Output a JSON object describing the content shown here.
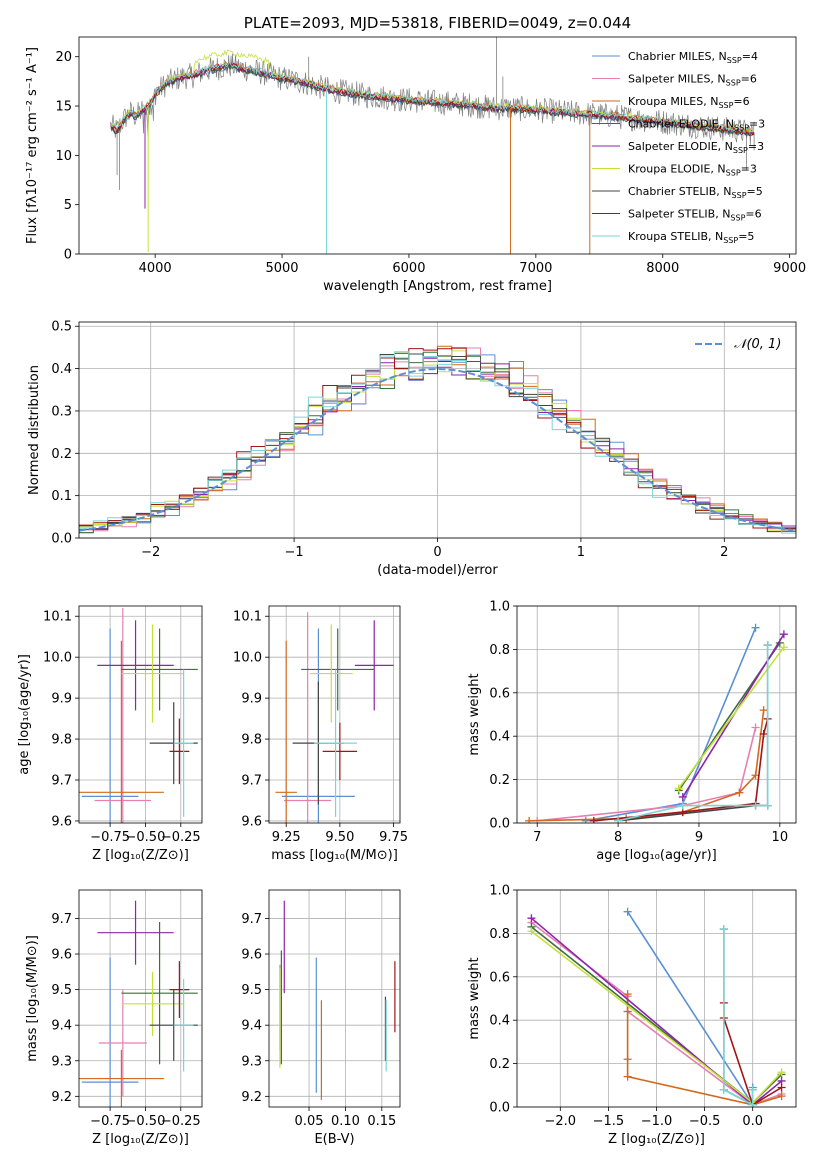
{
  "colors": {
    "chabrier_miles": "#5b8fd6",
    "salpeter_miles": "#e87fb0",
    "kroupa_miles": "#d2691e",
    "chabrier_elodie": "#3d6e3d",
    "salpeter_elodie": "#8e24aa",
    "kroupa_elodie": "#c6e03a",
    "chabrier_stelib": "#444444",
    "salpeter_stelib": "#a11515",
    "kroupa_stelib": "#7ad6d6",
    "noise": "#808080",
    "gauss": "#5b8fd6"
  },
  "chart_data": [
    {
      "id": "spectrum",
      "type": "line",
      "title": "PLATE=2093, MJD=53818, FIBERID=0049, z=0.044",
      "xlabel": "wavelength [Angstrom, rest frame]",
      "ylabel": "Flux [fλ10⁻¹⁷ erg cm⁻² s⁻¹ A⁻¹]",
      "xlim": [
        3400,
        9050
      ],
      "ylim": [
        0,
        22
      ],
      "xticks": [
        4000,
        5000,
        6000,
        7000,
        8000,
        9000
      ],
      "yticks": [
        0,
        5,
        10,
        15,
        20
      ],
      "legend_position": "top-right",
      "legend": [
        {
          "label": "Chabrier MILES, N",
          "sub": "SSP",
          "tail": "=4",
          "color_key": "chabrier_miles"
        },
        {
          "label": "Salpeter MILES, N",
          "sub": "SSP",
          "tail": "=6",
          "color_key": "salpeter_miles"
        },
        {
          "label": "Kroupa MILES, N",
          "sub": "SSP",
          "tail": "=6",
          "color_key": "kroupa_miles"
        },
        {
          "label": "Chabrier ELODIE, N",
          "sub": "SSP",
          "tail": "=3",
          "color_key": "chabrier_elodie"
        },
        {
          "label": "Salpeter ELODIE, N",
          "sub": "SSP",
          "tail": "=3",
          "color_key": "salpeter_elodie"
        },
        {
          "label": "Kroupa ELODIE, N",
          "sub": "SSP",
          "tail": "=3",
          "color_key": "kroupa_elodie"
        },
        {
          "label": "Chabrier STELIB, N",
          "sub": "SSP",
          "tail": "=5",
          "color_key": "chabrier_stelib"
        },
        {
          "label": "Salpeter STELIB, N",
          "sub": "SSP",
          "tail": "=6",
          "color_key": "salpeter_stelib"
        },
        {
          "label": "Kroupa STELIB, N",
          "sub": "SSP",
          "tail": "=5",
          "color_key": "kroupa_stelib"
        }
      ],
      "continuum": [
        [
          3650,
          13.0
        ],
        [
          3700,
          12.5
        ],
        [
          3750,
          13.6
        ],
        [
          3800,
          14.3
        ],
        [
          3850,
          14.0
        ],
        [
          3900,
          14.6
        ],
        [
          3950,
          15.0
        ],
        [
          4000,
          16.3
        ],
        [
          4100,
          17.4
        ],
        [
          4200,
          17.9
        ],
        [
          4300,
          18.1
        ],
        [
          4400,
          18.6
        ],
        [
          4500,
          18.9
        ],
        [
          4600,
          19.1
        ],
        [
          4700,
          18.8
        ],
        [
          4800,
          18.5
        ],
        [
          4900,
          18.2
        ],
        [
          5000,
          17.8
        ],
        [
          5100,
          17.6
        ],
        [
          5200,
          17.3
        ],
        [
          5300,
          16.9
        ],
        [
          5400,
          16.6
        ],
        [
          5500,
          16.4
        ],
        [
          5600,
          16.2
        ],
        [
          5700,
          16.0
        ],
        [
          5800,
          15.9
        ],
        [
          5900,
          15.7
        ],
        [
          6000,
          15.6
        ],
        [
          6100,
          15.5
        ],
        [
          6200,
          15.4
        ],
        [
          6300,
          15.3
        ],
        [
          6400,
          15.2
        ],
        [
          6500,
          15.1
        ],
        [
          6600,
          14.9
        ],
        [
          6700,
          14.8
        ],
        [
          6800,
          14.8
        ],
        [
          6900,
          14.7
        ],
        [
          7000,
          14.6
        ],
        [
          7200,
          14.4
        ],
        [
          7400,
          14.2
        ],
        [
          7600,
          14.0
        ],
        [
          7800,
          13.7
        ],
        [
          8000,
          13.4
        ],
        [
          8200,
          13.1
        ],
        [
          8400,
          12.8
        ],
        [
          8600,
          12.5
        ],
        [
          8700,
          12.3
        ]
      ],
      "noise_spikes": [
        [
          6690,
          22.0
        ],
        [
          6740,
          18.0
        ],
        [
          5210,
          20.0
        ],
        [
          8720,
          10.5
        ],
        [
          8660,
          8.5
        ],
        [
          3700,
          8.0
        ],
        [
          3720,
          6.5
        ]
      ],
      "model_drops": [
        {
          "x": 3945,
          "y": 0.2,
          "color_key": "kroupa_elodie"
        },
        {
          "x": 3920,
          "y": 4.6,
          "color_key": "salpeter_elodie"
        },
        {
          "x": 5350,
          "y": 0.0,
          "color_key": "kroupa_stelib"
        },
        {
          "x": 6800,
          "y": 0.0,
          "color_key": "kroupa_miles"
        },
        {
          "x": 7425,
          "y": 0.0,
          "color_key": "kroupa_miles"
        }
      ]
    },
    {
      "id": "residuals",
      "type": "line",
      "xlabel": "(data-model)/error",
      "ylabel": "Normed distribution",
      "xlim": [
        -2.5,
        2.5
      ],
      "ylim": [
        0,
        0.51
      ],
      "xticks": [
        -2,
        -1,
        0,
        1,
        2
      ],
      "yticks": [
        0.0,
        0.1,
        0.2,
        0.3,
        0.4,
        0.5
      ],
      "grid": true,
      "legend_position": "top-right",
      "gauss_label": "𝒩(0, 1)",
      "bin_width": 0.1
    },
    {
      "id": "age_vs_Z",
      "type": "scatter",
      "xlabel": "Z [log₁₀(Z/Z⊙)]",
      "ylabel": "age  [log₁₀(age/yr)]",
      "xlim": [
        -0.97,
        -0.1
      ],
      "ylim": [
        9.595,
        10.125
      ],
      "xticks": [
        -0.75,
        -0.5,
        -0.25
      ],
      "xticklabels": [
        "−0.75",
        "−0.50",
        "−0.25"
      ],
      "yticks": [
        9.6,
        9.7,
        9.8,
        9.9,
        10.0,
        10.1
      ],
      "grid": true,
      "points": [
        {
          "x": -0.75,
          "xerr": 0.2,
          "y": 9.66,
          "yerr": 0.41,
          "color_key": "chabrier_miles"
        },
        {
          "x": -0.66,
          "xerr": 0.2,
          "y": 9.65,
          "yerr": 0.47,
          "color_key": "salpeter_miles"
        },
        {
          "x": -0.67,
          "xerr": 0.3,
          "y": 9.67,
          "yerr": 0.37,
          "color_key": "kroupa_miles"
        },
        {
          "x": -0.4,
          "xerr": 0.27,
          "y": 9.97,
          "yerr": 0.1,
          "color_key": "chabrier_elodie"
        },
        {
          "x": -0.57,
          "xerr": 0.27,
          "y": 9.98,
          "yerr": 0.11,
          "color_key": "salpeter_elodie"
        },
        {
          "x": -0.45,
          "xerr": 0.22,
          "y": 9.96,
          "yerr": 0.12,
          "color_key": "kroupa_elodie"
        },
        {
          "x": -0.3,
          "xerr": 0.17,
          "y": 9.79,
          "yerr": 0.1,
          "color_key": "chabrier_stelib"
        },
        {
          "x": -0.26,
          "xerr": 0.07,
          "y": 9.77,
          "yerr": 0.08,
          "color_key": "salpeter_stelib"
        },
        {
          "x": -0.23,
          "xerr": 0.07,
          "y": 9.79,
          "yerr": 0.18,
          "color_key": "kroupa_stelib"
        }
      ]
    },
    {
      "id": "age_vs_mass",
      "type": "scatter",
      "xlabel": "mass [log₁₀(M/M⊙)]",
      "xlim": [
        9.17,
        9.78
      ],
      "ylim": [
        9.595,
        10.125
      ],
      "xticks": [
        9.25,
        9.5,
        9.75
      ],
      "xticklabels": [
        "9.25",
        "9.50",
        "9.75"
      ],
      "yticks": [
        9.6,
        9.7,
        9.8,
        9.9,
        10.0,
        10.1
      ],
      "grid": true,
      "points": [
        {
          "x": 9.4,
          "xerr": 0.17,
          "y": 9.66,
          "yerr": 0.41,
          "color_key": "chabrier_miles"
        },
        {
          "x": 9.35,
          "xerr": 0.11,
          "y": 9.65,
          "yerr": 0.46,
          "color_key": "salpeter_miles"
        },
        {
          "x": 9.25,
          "xerr": 0.05,
          "y": 9.67,
          "yerr": 0.37,
          "color_key": "kroupa_miles"
        },
        {
          "x": 9.49,
          "xerr": 0.17,
          "y": 9.97,
          "yerr": 0.1,
          "color_key": "chabrier_elodie"
        },
        {
          "x": 9.66,
          "xerr": 0.09,
          "y": 9.98,
          "yerr": 0.11,
          "color_key": "salpeter_elodie"
        },
        {
          "x": 9.46,
          "xerr": 0.1,
          "y": 9.96,
          "yerr": 0.12,
          "color_key": "kroupa_elodie"
        },
        {
          "x": 9.4,
          "xerr": 0.12,
          "y": 9.79,
          "yerr": 0.15,
          "color_key": "chabrier_stelib"
        },
        {
          "x": 9.5,
          "xerr": 0.08,
          "y": 9.77,
          "yerr": 0.07,
          "color_key": "salpeter_stelib"
        },
        {
          "x": 9.48,
          "xerr": 0.1,
          "y": 9.79,
          "yerr": 0.18,
          "color_key": "kroupa_stelib"
        }
      ]
    },
    {
      "id": "mass_weight_vs_age",
      "type": "line",
      "xlabel": "age  [log₁₀(age/yr)]",
      "ylabel": "mass weight",
      "xlim": [
        6.75,
        10.2
      ],
      "ylim": [
        0,
        1
      ],
      "xticks": [
        7,
        8,
        9,
        10
      ],
      "yticks": [
        0.0,
        0.2,
        0.4,
        0.6,
        0.8,
        1.0
      ],
      "grid": true,
      "series": [
        {
          "color_key": "chabrier_miles",
          "x": [
            7.6,
            8.8,
            9.7
          ],
          "y": [
            0.01,
            0.09,
            0.9
          ]
        },
        {
          "color_key": "salpeter_miles",
          "x": [
            7.0,
            8.8,
            9.5,
            9.7
          ],
          "y": [
            0.01,
            0.08,
            0.14,
            0.44
          ]
        },
        {
          "color_key": "kroupa_miles",
          "x": [
            6.9,
            8.1,
            8.8,
            9.5,
            9.7,
            9.8
          ],
          "y": [
            0.01,
            0.02,
            0.05,
            0.14,
            0.22,
            0.52
          ]
        },
        {
          "color_key": "chabrier_elodie",
          "x": [
            8.75,
            10.0
          ],
          "y": [
            0.15,
            0.83
          ]
        },
        {
          "color_key": "salpeter_elodie",
          "x": [
            8.8,
            10.05
          ],
          "y": [
            0.12,
            0.87
          ]
        },
        {
          "color_key": "kroupa_elodie",
          "x": [
            8.75,
            10.05
          ],
          "y": [
            0.16,
            0.81
          ]
        },
        {
          "color_key": "chabrier_stelib",
          "x": [
            8.0,
            9.7,
            9.85,
            9.85
          ],
          "y": [
            0.01,
            0.08,
            0.08,
            0.82
          ]
        },
        {
          "color_key": "salpeter_stelib",
          "x": [
            7.7,
            8.8,
            9.7,
            9.8,
            9.85
          ],
          "y": [
            0.01,
            0.05,
            0.09,
            0.41,
            0.48
          ]
        },
        {
          "color_key": "kroupa_stelib",
          "x": [
            8.0,
            8.8,
            9.7,
            9.85,
            9.85
          ],
          "y": [
            0.01,
            0.08,
            0.08,
            0.08,
            0.82
          ]
        }
      ]
    },
    {
      "id": "mass_vs_Z",
      "type": "scatter",
      "xlabel": "Z [log₁₀(Z/Z⊙)]",
      "ylabel": "mass [log₁₀(M/M⊙)]",
      "xlim": [
        -0.97,
        -0.1
      ],
      "ylim": [
        9.17,
        9.78
      ],
      "xticks": [
        -0.75,
        -0.5,
        -0.25
      ],
      "xticklabels": [
        "−0.75",
        "−0.50",
        "−0.25"
      ],
      "yticks": [
        9.2,
        9.3,
        9.4,
        9.5,
        9.6,
        9.7
      ],
      "grid": true,
      "points": [
        {
          "x": -0.75,
          "xerr": 0.2,
          "y": 9.24,
          "yerr": 0.35,
          "color_key": "chabrier_miles"
        },
        {
          "x": -0.66,
          "xerr": 0.17,
          "y": 9.35,
          "yerr": 0.15,
          "color_key": "salpeter_miles"
        },
        {
          "x": -0.67,
          "xerr": 0.3,
          "y": 9.25,
          "yerr": 0.08,
          "color_key": "kroupa_miles"
        },
        {
          "x": -0.4,
          "xerr": 0.27,
          "y": 9.49,
          "yerr": 0.2,
          "color_key": "chabrier_elodie"
        },
        {
          "x": -0.57,
          "xerr": 0.27,
          "y": 9.66,
          "yerr": 0.09,
          "color_key": "salpeter_elodie"
        },
        {
          "x": -0.45,
          "xerr": 0.22,
          "y": 9.46,
          "yerr": 0.09,
          "color_key": "kroupa_elodie"
        },
        {
          "x": -0.3,
          "xerr": 0.17,
          "y": 9.4,
          "yerr": 0.1,
          "color_key": "chabrier_stelib"
        },
        {
          "x": -0.26,
          "xerr": 0.07,
          "y": 9.5,
          "yerr": 0.08,
          "color_key": "salpeter_stelib"
        },
        {
          "x": -0.23,
          "xerr": 0.07,
          "y": 9.4,
          "yerr": 0.13,
          "color_key": "kroupa_stelib"
        }
      ]
    },
    {
      "id": "mass_vs_EBV",
      "type": "scatter",
      "xlabel": "E(B-V)",
      "xlim": [
        -0.005,
        0.175
      ],
      "ylim": [
        9.17,
        9.78
      ],
      "xticks": [
        0.05,
        0.1,
        0.15
      ],
      "xticklabels": [
        "0.05",
        "0.10",
        "0.15"
      ],
      "yticks": [
        9.2,
        9.3,
        9.4,
        9.5,
        9.6,
        9.7
      ],
      "grid": true,
      "points": [
        {
          "x": 0.06,
          "xerr": 0.0,
          "y": 9.4,
          "yerr": 0.19,
          "color_key": "chabrier_miles"
        },
        {
          "x": 0.01,
          "xerr": 0.0,
          "y": 9.45,
          "yerr": 0.12,
          "color_key": "salpeter_miles"
        },
        {
          "x": 0.067,
          "xerr": 0.0,
          "y": 9.33,
          "yerr": 0.14,
          "color_key": "kroupa_miles"
        },
        {
          "x": 0.012,
          "xerr": 0.0,
          "y": 9.45,
          "yerr": 0.16,
          "color_key": "chabrier_elodie"
        },
        {
          "x": 0.016,
          "xerr": 0.0,
          "y": 9.62,
          "yerr": 0.13,
          "color_key": "salpeter_elodie"
        },
        {
          "x": 0.01,
          "xerr": 0.0,
          "y": 9.42,
          "yerr": 0.14,
          "color_key": "kroupa_elodie"
        },
        {
          "x": 0.155,
          "xerr": 0.0,
          "y": 9.39,
          "yerr": 0.09,
          "color_key": "chabrier_stelib"
        },
        {
          "x": 0.168,
          "xerr": 0.0,
          "y": 9.48,
          "yerr": 0.1,
          "color_key": "salpeter_stelib"
        },
        {
          "x": 0.156,
          "xerr": 0.0,
          "y": 9.37,
          "yerr": 0.1,
          "color_key": "kroupa_stelib"
        }
      ]
    },
    {
      "id": "mass_weight_vs_Z",
      "type": "line",
      "xlabel": "Z [log₁₀(Z/Z⊙)]",
      "ylabel": "mass weight",
      "xlim": [
        -2.45,
        0.45
      ],
      "ylim": [
        0,
        1
      ],
      "xticks": [
        -2.0,
        -1.5,
        -1.0,
        -0.5,
        0.0
      ],
      "xticklabels": [
        "−2.0",
        "−1.5",
        "−1.0",
        "−0.5",
        "0.0"
      ],
      "yticks": [
        0.0,
        0.2,
        0.4,
        0.6,
        0.8,
        1.0
      ],
      "grid": true,
      "series": [
        {
          "color_key": "chabrier_miles",
          "x": [
            -1.3,
            0.0,
            0.0
          ],
          "y": [
            0.9,
            0.01,
            0.09
          ]
        },
        {
          "color_key": "salpeter_miles",
          "x": [
            -2.3,
            -1.3,
            -1.3,
            0.0,
            0.3
          ],
          "y": [
            0.85,
            0.51,
            0.44,
            0.01,
            0.06
          ]
        },
        {
          "color_key": "kroupa_miles",
          "x": [
            -1.3,
            -1.3,
            -1.3,
            -1.3,
            0.0,
            0.3
          ],
          "y": [
            0.52,
            0.44,
            0.22,
            0.14,
            0.01,
            0.05
          ]
        },
        {
          "color_key": "chabrier_elodie",
          "x": [
            -2.3,
            0.0,
            0.3
          ],
          "y": [
            0.83,
            0.02,
            0.15
          ]
        },
        {
          "color_key": "salpeter_elodie",
          "x": [
            -2.3,
            0.0,
            0.3
          ],
          "y": [
            0.87,
            0.01,
            0.12
          ]
        },
        {
          "color_key": "kroupa_elodie",
          "x": [
            -2.3,
            0.0,
            0.3
          ],
          "y": [
            0.81,
            0.02,
            0.16
          ]
        },
        {
          "color_key": "chabrier_stelib",
          "x": [
            -0.3,
            -0.3,
            0.0,
            0.0
          ],
          "y": [
            0.82,
            0.08,
            0.01,
            0.08
          ]
        },
        {
          "color_key": "salpeter_stelib",
          "x": [
            -0.3,
            -0.3,
            0.0,
            0.3
          ],
          "y": [
            0.48,
            0.41,
            0.01,
            0.09
          ]
        },
        {
          "color_key": "kroupa_stelib",
          "x": [
            -0.3,
            -0.3,
            0.0,
            0.0
          ],
          "y": [
            0.82,
            0.08,
            0.01,
            0.08
          ]
        }
      ]
    }
  ]
}
